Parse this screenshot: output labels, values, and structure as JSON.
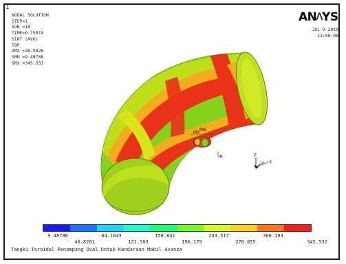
{
  "window_number": "1",
  "info_panel": {
    "lines": [
      "NODAL SOLUTION",
      "STEP=1",
      "SUB =18",
      "TIME=0.75874",
      "SINT     (AVG)",
      "TOP",
      "DMX =38.9826",
      "SMN =9.48788",
      "SMX =345.532"
    ]
  },
  "logo": {
    "text_left": "AN",
    "text_mark": "⋀",
    "text_right": "YS"
  },
  "datetime": {
    "date": "JUL  9 2010",
    "time": "13:00:08"
  },
  "markers": {
    "max_label": "MX",
    "min_label": "MN",
    "axis_z": "Z",
    "axis_x": "X",
    "axis_y": "Y"
  },
  "legend": {
    "colors": [
      "#1a1aff",
      "#1a73ff",
      "#1ad3ff",
      "#1affcf",
      "#1aff6d",
      "#73ff1a",
      "#d4ff1a",
      "#ffd21a",
      "#ff761a",
      "#ff1a1a"
    ],
    "top_labels": [
      "9.48788",
      "84.1643",
      "158.841",
      "233.517",
      "308.193"
    ],
    "bottom_labels": [
      "46.8261",
      "121.503",
      "196.179",
      "270.855",
      "345.532"
    ]
  },
  "caption": "Tangki Toroidal Penampang Oval Untuk Kendaraan Mobil Avanza"
}
